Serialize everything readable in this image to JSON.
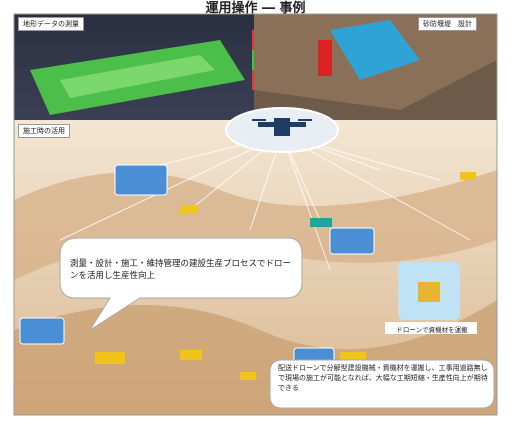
{
  "header": {
    "title": "運用操作 ― 事例"
  },
  "panels": [
    {
      "label": "地形データの測量"
    },
    {
      "label": "砂防堰堤　設計"
    }
  ],
  "scene": {
    "label": "施工時の活用",
    "bubble_main": "測量・設計・施工・維持管理の建設生産プロセスでドローンを活用し生産性向上",
    "drone_caption": "ドローンで資機材を運搬",
    "bubble_bottom": "配送ドローンで分解型建設機械・資機材を運搬し、工事用道路無しで現場の施工が可能となれば、大幅な工期短縮・生産性向上が期待できる"
  }
}
